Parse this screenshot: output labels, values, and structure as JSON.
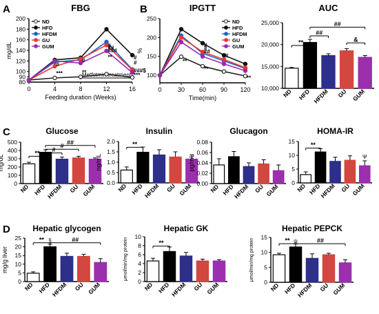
{
  "panel_letters": [
    "A",
    "B",
    "C",
    "D"
  ],
  "chart_data": [
    {
      "id": "fbg",
      "type": "line",
      "title": "FBG",
      "xlabel": "Feeding duration (Weeks)",
      "ylabel": "mg/dL",
      "xlim": [
        0,
        16
      ],
      "ylim": [
        80,
        200
      ],
      "xticks": [
        0,
        4,
        8,
        12,
        16
      ],
      "yticks": [
        80,
        90,
        100,
        120,
        140,
        160,
        180,
        200
      ],
      "ytick_labels": [
        "80",
        "90",
        "100",
        "120",
        "140",
        "160",
        "180",
        "200"
      ],
      "legend": [
        "ND",
        "HFD",
        "HFDM",
        "GU",
        "GUM"
      ],
      "legend_position": "top-left",
      "annotation": "Metfotmin treatment",
      "x": [
        0,
        4,
        8,
        12,
        16
      ],
      "series": [
        {
          "name": "ND",
          "color": "#222222",
          "marker": "open",
          "values": [
            84,
            88,
            90,
            95,
            89
          ]
        },
        {
          "name": "HFD",
          "color": "#111111",
          "marker": "filled",
          "values": [
            84,
            122,
            126,
            180,
            131
          ]
        },
        {
          "name": "HFDM",
          "color": "#1565c0",
          "marker": "filled",
          "values": [
            84,
            118,
            122,
            156,
            104
          ]
        },
        {
          "name": "GU",
          "color": "#e53935",
          "marker": "filled",
          "values": [
            84,
            110,
            124,
            150,
            103
          ]
        },
        {
          "name": "GUM",
          "color": "#9c27b0",
          "marker": "filled",
          "values": [
            84,
            120,
            116,
            139,
            98
          ]
        }
      ],
      "marks": [
        {
          "text": "***",
          "x": 4,
          "y": 93
        },
        {
          "text": "**",
          "x": 8,
          "y": 95
        },
        {
          "text": "**",
          "x": 12,
          "y": 124
        },
        {
          "text": "#",
          "x": 4,
          "y": 110
        },
        {
          "text": "#",
          "x": 8,
          "y": 117
        },
        {
          "text": "#",
          "x": 12,
          "y": 145
        },
        {
          "text": "##",
          "x": 12,
          "y": 141
        },
        {
          "text": "###",
          "x": 12,
          "y": 136
        },
        {
          "text": "#",
          "x": 16,
          "y": 123
        },
        {
          "text": "#",
          "x": 16,
          "y": 113
        },
        {
          "text": "###$",
          "x": 16,
          "y": 98
        },
        {
          "text": "***",
          "x": 16,
          "y": 90
        }
      ]
    },
    {
      "id": "ipgtt",
      "type": "line",
      "title": "IPGTT",
      "xlabel": "Time(min)",
      "ylabel": "%",
      "xlim": [
        0,
        120
      ],
      "ylim": [
        80,
        250
      ],
      "xticks": [
        0,
        30,
        60,
        90,
        120
      ],
      "yticks": [
        100,
        150,
        200,
        250
      ],
      "legend": [
        "ND",
        "HFD",
        "HFDM",
        "GU",
        "GUM"
      ],
      "legend_position": "top-right",
      "x": [
        0,
        30,
        60,
        90,
        120
      ],
      "series": [
        {
          "name": "ND",
          "color": "#222222",
          "marker": "open",
          "values": [
            100,
            149,
            124,
            110,
            98
          ]
        },
        {
          "name": "HFD",
          "color": "#111111",
          "marker": "filled",
          "values": [
            100,
            222,
            185,
            153,
            130
          ]
        },
        {
          "name": "HFDM",
          "color": "#1565c0",
          "marker": "filled",
          "values": [
            100,
            205,
            158,
            138,
            118
          ]
        },
        {
          "name": "GU",
          "color": "#e53935",
          "marker": "filled",
          "values": [
            100,
            200,
            162,
            142,
            120
          ]
        },
        {
          "name": "GUM",
          "color": "#9c27b0",
          "marker": "filled",
          "values": [
            100,
            188,
            150,
            130,
            112
          ]
        }
      ],
      "marks": [
        {
          "text": "**",
          "x": 30,
          "y": 132
        },
        {
          "text": "**",
          "x": 60,
          "y": 112
        },
        {
          "text": "**",
          "x": 120,
          "y": 88
        },
        {
          "text": "#",
          "x": 60,
          "y": 175
        },
        {
          "text": "#",
          "x": 60,
          "y": 167
        },
        {
          "text": "##",
          "x": 60,
          "y": 159
        },
        {
          "text": "#",
          "x": 90,
          "y": 147
        }
      ]
    },
    {
      "id": "auc",
      "type": "bar",
      "title": "AUC",
      "categories": [
        "ND",
        "HFD",
        "HFDM",
        "GU",
        "GUM"
      ],
      "ylim": [
        10000,
        25000
      ],
      "yticks": [
        10000,
        15000,
        20000,
        25000
      ],
      "ytick_labels": [
        "10,000",
        "15,000",
        "20,000",
        "25,000"
      ],
      "values": [
        14600,
        20500,
        17500,
        18600,
        17100
      ],
      "errors": [
        200,
        700,
        400,
        500,
        400
      ],
      "brackets": [
        {
          "from": 0,
          "to": 1,
          "y": 19800,
          "label": "**"
        },
        {
          "from": 1,
          "to": 2,
          "y": 22000,
          "label": "##"
        },
        {
          "from": 1,
          "to": 4,
          "y": 24000,
          "label": "##"
        },
        {
          "from": 3,
          "to": 4,
          "y": 20400,
          "label": "&"
        }
      ]
    },
    {
      "id": "glucose",
      "type": "bar",
      "title": "Glucose",
      "ylabel": "mg/dL",
      "categories": [
        "ND",
        "HFD",
        "HFDM",
        "GU",
        "GUM"
      ],
      "ylim": [
        0,
        500
      ],
      "yticks": [
        0,
        100,
        200,
        300,
        400,
        500
      ],
      "values": [
        238,
        378,
        295,
        310,
        295
      ],
      "errors": [
        20,
        30,
        25,
        20,
        15
      ],
      "brackets": [
        {
          "from": 0,
          "to": 1,
          "y": 330,
          "label": "**"
        },
        {
          "from": 1,
          "to": 2,
          "y": 370,
          "label": "#"
        },
        {
          "from": 1,
          "to": 3,
          "y": 415,
          "label": "#"
        },
        {
          "from": 1,
          "to": 4,
          "y": 460,
          "label": "##"
        }
      ]
    },
    {
      "id": "insulin",
      "type": "bar",
      "title": "Insulin",
      "ylabel": "ng/mL",
      "categories": [
        "ND",
        "HFD",
        "HFDM",
        "GU",
        "GUM"
      ],
      "ylim": [
        0,
        2.0
      ],
      "yticks": [
        0,
        0.5,
        1.0,
        1.5,
        2.0
      ],
      "ytick_labels": [
        "0.0",
        "0.5",
        "1.0",
        "1.5",
        "2.0"
      ],
      "values": [
        0.62,
        1.48,
        1.35,
        1.25,
        1.15
      ],
      "errors": [
        0.15,
        0.25,
        0.25,
        0.25,
        0.2
      ],
      "brackets": [
        {
          "from": 0,
          "to": 1,
          "y": 1.72,
          "label": "**"
        }
      ]
    },
    {
      "id": "glucagon",
      "type": "bar",
      "title": "Glucagon",
      "ylabel": "pg/mL",
      "categories": [
        "ND",
        "HFD",
        "HFDM",
        "GU",
        "GUM"
      ],
      "ylim": [
        0,
        0.08
      ],
      "yticks": [
        0,
        0.02,
        0.04,
        0.06,
        0.08
      ],
      "ytick_labels": [
        "0.00",
        "0.02",
        "0.04",
        "0.06",
        "0.08"
      ],
      "values": [
        0.036,
        0.052,
        0.033,
        0.038,
        0.025
      ],
      "errors": [
        0.012,
        0.01,
        0.007,
        0.008,
        0.011
      ],
      "brackets": []
    },
    {
      "id": "homa",
      "type": "bar",
      "title": "HOMA-IR",
      "categories": [
        "ND",
        "HFD",
        "HFDM",
        "GU",
        "GUM"
      ],
      "ylim": [
        0,
        15
      ],
      "yticks": [
        0,
        5,
        10,
        15
      ],
      "values": [
        3,
        11.2,
        7.8,
        8.2,
        6.2
      ],
      "errors": [
        1,
        1.2,
        1.5,
        1.6,
        1.8
      ],
      "brackets": [
        {
          "from": 0,
          "to": 1,
          "y": 12.6,
          "label": "**"
        }
      ],
      "marks": [
        {
          "text": "Ψ",
          "cat": 4,
          "y": 8.8
        }
      ]
    },
    {
      "id": "glycogen",
      "type": "bar",
      "title": "Hepatic glycogen",
      "ylabel": "mg/g liver",
      "categories": [
        "ND",
        "HFD",
        "HFDM",
        "GU",
        "GUM"
      ],
      "ylim": [
        0,
        25
      ],
      "yticks": [
        0,
        5,
        10,
        15,
        20,
        25
      ],
      "values": [
        4.8,
        20,
        14.5,
        14.5,
        11
      ],
      "errors": [
        0.8,
        1.5,
        1.8,
        1.2,
        2.2
      ],
      "brackets": [
        {
          "from": 0,
          "to": 1,
          "y": 22.3,
          "label": "**"
        },
        {
          "from": 1,
          "to": 4,
          "y": 22.3,
          "label": "##"
        }
      ],
      "marks": [
        {
          "text": "§",
          "cat": 1,
          "y": 22.6
        }
      ]
    },
    {
      "id": "gk",
      "type": "bar",
      "title": "Hepatic GK",
      "ylabel": "μmol/min/mg protein",
      "categories": [
        "ND",
        "HFD",
        "HFDM",
        "GU",
        "GUM"
      ],
      "ylim": [
        0,
        10
      ],
      "yticks": [
        0,
        2,
        4,
        6,
        8,
        10
      ],
      "values": [
        4.6,
        6.7,
        5.7,
        4.6,
        4.6
      ],
      "errors": [
        0.6,
        1.0,
        0.8,
        0.4,
        0.3
      ],
      "brackets": [
        {
          "from": 0,
          "to": 1,
          "y": 7.9,
          "label": "**"
        }
      ]
    },
    {
      "id": "pepck",
      "type": "bar",
      "title": "Hepatic PEPCK",
      "ylabel": "μmol/min/mg protein",
      "categories": [
        "ND",
        "HFD",
        "HFDM",
        "GU",
        "GUM"
      ],
      "ylim": [
        0,
        15
      ],
      "yticks": [
        0,
        5,
        10,
        15
      ],
      "values": [
        9.2,
        11.8,
        8.0,
        9.2,
        6.5
      ],
      "errors": [
        0.5,
        1.0,
        1.5,
        0.5,
        1.0
      ],
      "brackets": [
        {
          "from": 0,
          "to": 1,
          "y": 12.9,
          "label": "**"
        },
        {
          "from": 1,
          "to": 4,
          "y": 12.9,
          "label": "##"
        }
      ],
      "marks": [
        {
          "text": "ψ",
          "cat": 1,
          "y": 13.1
        }
      ]
    }
  ],
  "bar_styles": [
    {
      "fill": "#ffffff",
      "stroke": "#000000"
    },
    {
      "fill": "#000000",
      "stroke": "#000000"
    },
    {
      "fill": "#2d2f8a",
      "stroke": "#2d2f8a"
    },
    {
      "fill": "#d2473f",
      "stroke": "#d2473f"
    },
    {
      "fill": "#9b2fae",
      "stroke": "#9b2fae"
    }
  ]
}
